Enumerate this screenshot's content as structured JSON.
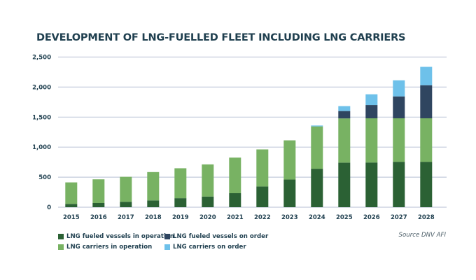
{
  "chart_data": {
    "type": "bar",
    "stacked": true,
    "title": "DEVELOPMENT OF LNG-FUELLED FLEET INCLUDING LNG CARRIERS",
    "xlabel": "",
    "ylabel": "",
    "ylim": [
      0,
      2500
    ],
    "yticks": [
      0,
      500,
      1000,
      1500,
      2000,
      2500
    ],
    "ytick_labels": [
      "0",
      "500",
      "1,000",
      "1,500",
      "2,000",
      "2,500"
    ],
    "grid": true,
    "categories": [
      "2015",
      "2016",
      "2017",
      "2018",
      "2019",
      "2020",
      "2021",
      "2022",
      "2023",
      "2024",
      "2025",
      "2026",
      "2027",
      "2028"
    ],
    "series": [
      {
        "name": "LNG fueled vessels in operation",
        "color": "#2b6134",
        "values": [
          55,
          70,
          90,
          113,
          150,
          178,
          233,
          345,
          460,
          640,
          742,
          744,
          756,
          756
        ]
      },
      {
        "name": "LNG carriers in operation",
        "color": "#78b263",
        "values": [
          358,
          394,
          416,
          472,
          498,
          535,
          593,
          617,
          653,
          705,
          736,
          736,
          724,
          724
        ]
      },
      {
        "name": "LNG fueled vessels on order",
        "color": "#2f4560",
        "values": [
          0,
          0,
          0,
          0,
          0,
          0,
          0,
          0,
          0,
          0,
          123,
          221,
          365,
          551
        ]
      },
      {
        "name": "LNG carriers on order",
        "color": "#6ec1ea",
        "values": [
          0,
          0,
          0,
          0,
          0,
          0,
          0,
          0,
          0,
          15,
          82,
          179,
          268,
          306
        ]
      }
    ],
    "legend_position": "bottom-left",
    "source": "Source DNV AFI"
  },
  "legend": [
    {
      "label": "LNG fueled vessels in operation",
      "color": "#2b6134"
    },
    {
      "label": "LNG fueled vessels on order",
      "color": "#2f4560"
    },
    {
      "label": "LNG carriers in operation",
      "color": "#78b263"
    },
    {
      "label": "LNG carriers on order",
      "color": "#6ec1ea"
    }
  ],
  "colors": {
    "title": "#1f3f4f",
    "gridline": "#c3cbdc"
  }
}
